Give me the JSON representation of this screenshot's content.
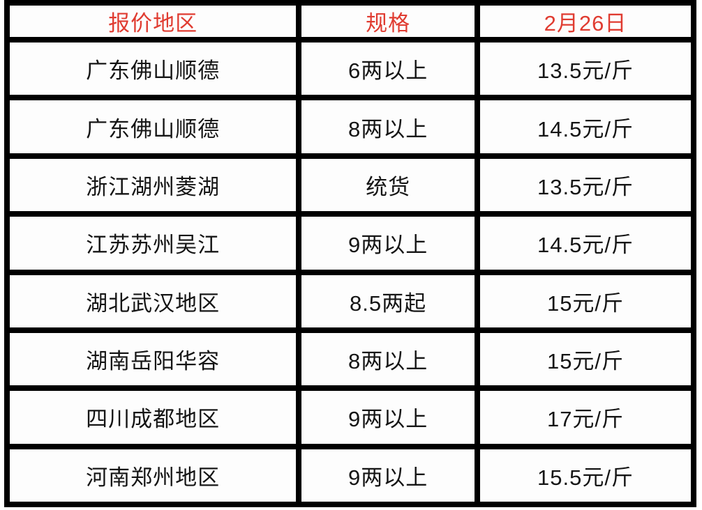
{
  "chart_data": {
    "type": "table",
    "title": "",
    "columns": [
      "报价地区",
      "规格",
      "2月26日"
    ],
    "rows": [
      {
        "region": "广东佛山顺德",
        "spec": "6两以上",
        "price": "13.5元/斤"
      },
      {
        "region": "广东佛山顺德",
        "spec": "8两以上",
        "price": "14.5元/斤"
      },
      {
        "region": "浙江湖州菱湖",
        "spec": "统货",
        "price": "13.5元/斤"
      },
      {
        "region": "江苏苏州吴江",
        "spec": "9两以上",
        "price": "14.5元/斤"
      },
      {
        "region": "湖北武汉地区",
        "spec": "8.5两起",
        "price": "15元/斤"
      },
      {
        "region": "湖南岳阳华容",
        "spec": "8两以上",
        "price": "15元/斤"
      },
      {
        "region": "四川成都地区",
        "spec": "9两以上",
        "price": "17元/斤"
      },
      {
        "region": "河南郑州地区",
        "spec": "9两以上",
        "price": "15.5元/斤"
      }
    ]
  },
  "table": {
    "headers": {
      "region": "报价地区",
      "spec": "规格",
      "date": "2月26日"
    },
    "rows": [
      [
        "广东佛山顺德",
        "6两以上",
        "13.5元/斤"
      ],
      [
        "广东佛山顺德",
        "8两以上",
        "14.5元/斤"
      ],
      [
        "浙江湖州菱湖",
        "统货",
        "13.5元/斤"
      ],
      [
        "江苏苏州吴江",
        "9两以上",
        "14.5元/斤"
      ],
      [
        "湖北武汉地区",
        "8.5两起",
        "15元/斤"
      ],
      [
        "湖南岳阳华容",
        "8两以上",
        "15元/斤"
      ],
      [
        "四川成都地区",
        "9两以上",
        "17元/斤"
      ],
      [
        "河南郑州地区",
        "9两以上",
        "15.5元/斤"
      ]
    ],
    "colors": {
      "header_text": "#e03c31",
      "body_text": "#151515",
      "border": "#000000",
      "cell_bg": "#fdfdfd"
    }
  }
}
